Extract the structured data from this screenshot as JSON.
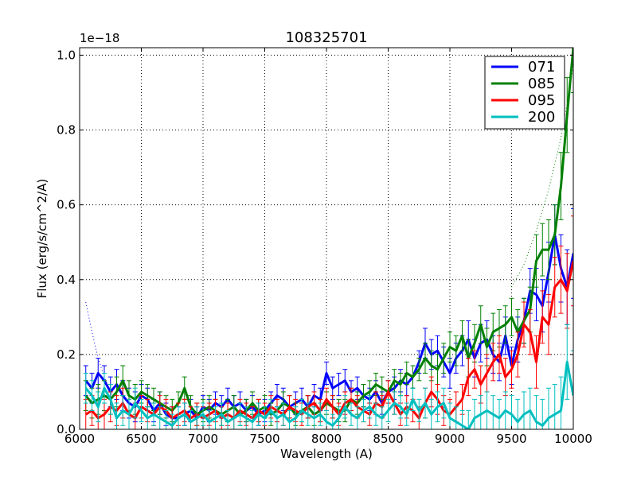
{
  "chart_data": {
    "type": "line",
    "title": "108325701",
    "xlabel": "Wavelength (A)",
    "ylabel": "Flux (erg/s/cm^2/A)",
    "offset_text": "1e−18",
    "xlim": [
      6000,
      10000
    ],
    "ylim": [
      0.0,
      1.02
    ],
    "xticks": [
      6000,
      6500,
      7000,
      7500,
      8000,
      8500,
      9000,
      9500,
      10000
    ],
    "xtick_labels": [
      "6000",
      "6500",
      "7000",
      "7500",
      "8000",
      "8500",
      "9000",
      "9500",
      "10000"
    ],
    "yticks": [
      0.0,
      0.2,
      0.4,
      0.6,
      0.8,
      1.0
    ],
    "ytick_labels": [
      "0.0",
      "0.2",
      "0.4",
      "0.6",
      "0.8",
      "1.0"
    ],
    "grid": true,
    "legend_position": "top-right",
    "series": [
      {
        "name": "071",
        "color": "#0000ff",
        "x": [
          6050,
          6100,
          6150,
          6200,
          6250,
          6300,
          6350,
          6400,
          6450,
          6500,
          6550,
          6600,
          6650,
          6700,
          6750,
          6800,
          6850,
          6900,
          6950,
          7000,
          7050,
          7100,
          7150,
          7200,
          7250,
          7300,
          7350,
          7400,
          7450,
          7500,
          7550,
          7600,
          7650,
          7700,
          7750,
          7800,
          7850,
          7900,
          7950,
          8000,
          8050,
          8100,
          8150,
          8200,
          8250,
          8300,
          8350,
          8400,
          8450,
          8500,
          8550,
          8600,
          8650,
          8700,
          8750,
          8800,
          8850,
          8900,
          8950,
          9000,
          9050,
          9100,
          9150,
          9200,
          9250,
          9300,
          9350,
          9400,
          9450,
          9500,
          9550,
          9600,
          9650,
          9700,
          9750,
          9800,
          9850,
          9900,
          9950,
          10000
        ],
        "y": [
          0.13,
          0.11,
          0.15,
          0.13,
          0.1,
          0.12,
          0.09,
          0.07,
          0.06,
          0.09,
          0.08,
          0.05,
          0.07,
          0.04,
          0.03,
          0.03,
          0.04,
          0.05,
          0.03,
          0.06,
          0.05,
          0.07,
          0.06,
          0.08,
          0.06,
          0.07,
          0.05,
          0.06,
          0.04,
          0.05,
          0.07,
          0.09,
          0.08,
          0.06,
          0.07,
          0.08,
          0.06,
          0.09,
          0.08,
          0.15,
          0.11,
          0.12,
          0.13,
          0.1,
          0.11,
          0.09,
          0.08,
          0.1,
          0.07,
          0.1,
          0.11,
          0.13,
          0.12,
          0.14,
          0.18,
          0.23,
          0.2,
          0.21,
          0.18,
          0.15,
          0.19,
          0.21,
          0.24,
          0.19,
          0.23,
          0.24,
          0.2,
          0.18,
          0.25,
          0.17,
          0.24,
          0.29,
          0.37,
          0.36,
          0.33,
          0.42,
          0.52,
          0.43,
          0.38,
          0.47
        ],
        "err": [
          0.04,
          0.04,
          0.04,
          0.04,
          0.04,
          0.04,
          0.04,
          0.04,
          0.04,
          0.03,
          0.03,
          0.03,
          0.03,
          0.03,
          0.03,
          0.03,
          0.03,
          0.03,
          0.03,
          0.03,
          0.03,
          0.03,
          0.03,
          0.03,
          0.03,
          0.03,
          0.03,
          0.03,
          0.03,
          0.03,
          0.03,
          0.03,
          0.03,
          0.03,
          0.03,
          0.03,
          0.03,
          0.03,
          0.03,
          0.03,
          0.03,
          0.03,
          0.03,
          0.03,
          0.03,
          0.03,
          0.03,
          0.03,
          0.03,
          0.03,
          0.03,
          0.03,
          0.03,
          0.03,
          0.03,
          0.04,
          0.04,
          0.04,
          0.04,
          0.04,
          0.04,
          0.04,
          0.05,
          0.05,
          0.05,
          0.05,
          0.05,
          0.05,
          0.05,
          0.05,
          0.06,
          0.06,
          0.06,
          0.07,
          0.07,
          0.08,
          0.08,
          0.09,
          0.1,
          0.12
        ],
        "model": {
          "x": [
            6050,
            6100,
            6150,
            6200,
            6250,
            6300
          ],
          "y": [
            0.34,
            0.26,
            0.19,
            0.14,
            0.1,
            0.07
          ]
        }
      },
      {
        "name": "085",
        "color": "#008000",
        "x": [
          6050,
          6100,
          6150,
          6200,
          6250,
          6300,
          6350,
          6400,
          6450,
          6500,
          6550,
          6600,
          6650,
          6700,
          6750,
          6800,
          6850,
          6900,
          6950,
          7000,
          7050,
          7100,
          7150,
          7200,
          7250,
          7300,
          7350,
          7400,
          7450,
          7500,
          7550,
          7600,
          7650,
          7700,
          7750,
          7800,
          7850,
          7900,
          7950,
          8000,
          8050,
          8100,
          8150,
          8200,
          8250,
          8300,
          8350,
          8400,
          8450,
          8500,
          8550,
          8600,
          8650,
          8700,
          8750,
          8800,
          8850,
          8900,
          8950,
          9000,
          9050,
          9100,
          9150,
          9200,
          9250,
          9300,
          9350,
          9400,
          9450,
          9500,
          9550,
          9600,
          9650,
          9700,
          9750,
          9800,
          9850,
          9900,
          9950,
          10000
        ],
        "y": [
          0.09,
          0.07,
          0.08,
          0.09,
          0.08,
          0.1,
          0.13,
          0.09,
          0.08,
          0.1,
          0.09,
          0.08,
          0.07,
          0.06,
          0.05,
          0.07,
          0.11,
          0.06,
          0.04,
          0.05,
          0.06,
          0.05,
          0.04,
          0.05,
          0.06,
          0.04,
          0.05,
          0.07,
          0.05,
          0.06,
          0.04,
          0.05,
          0.07,
          0.06,
          0.04,
          0.05,
          0.06,
          0.04,
          0.05,
          0.07,
          0.06,
          0.05,
          0.05,
          0.08,
          0.07,
          0.09,
          0.1,
          0.12,
          0.11,
          0.1,
          0.13,
          0.12,
          0.15,
          0.14,
          0.16,
          0.19,
          0.17,
          0.16,
          0.19,
          0.22,
          0.21,
          0.25,
          0.19,
          0.23,
          0.28,
          0.22,
          0.26,
          0.27,
          0.28,
          0.3,
          0.26,
          0.29,
          0.32,
          0.45,
          0.48,
          0.48,
          0.52,
          0.65,
          0.84,
          1.02
        ],
        "err": [
          0.04,
          0.04,
          0.04,
          0.04,
          0.04,
          0.04,
          0.04,
          0.04,
          0.04,
          0.03,
          0.03,
          0.03,
          0.03,
          0.03,
          0.03,
          0.03,
          0.03,
          0.03,
          0.03,
          0.03,
          0.03,
          0.03,
          0.03,
          0.03,
          0.03,
          0.03,
          0.03,
          0.03,
          0.03,
          0.03,
          0.03,
          0.03,
          0.03,
          0.03,
          0.03,
          0.03,
          0.03,
          0.03,
          0.03,
          0.03,
          0.03,
          0.03,
          0.03,
          0.03,
          0.03,
          0.03,
          0.03,
          0.03,
          0.03,
          0.03,
          0.03,
          0.03,
          0.03,
          0.03,
          0.03,
          0.04,
          0.04,
          0.04,
          0.04,
          0.04,
          0.04,
          0.04,
          0.05,
          0.05,
          0.05,
          0.05,
          0.05,
          0.05,
          0.05,
          0.05,
          0.06,
          0.06,
          0.06,
          0.07,
          0.07,
          0.08,
          0.08,
          0.09,
          0.1,
          0.12
        ],
        "model": {
          "x": [
            9500,
            9600,
            9700,
            9800,
            9900,
            9950,
            10000
          ],
          "y": [
            0.38,
            0.44,
            0.53,
            0.64,
            0.78,
            0.87,
            0.97
          ]
        }
      },
      {
        "name": "095",
        "color": "#ff0000",
        "x": [
          6050,
          6100,
          6150,
          6200,
          6250,
          6300,
          6350,
          6400,
          6450,
          6500,
          6550,
          6600,
          6650,
          6700,
          6750,
          6800,
          6850,
          6900,
          6950,
          7000,
          7050,
          7100,
          7150,
          7200,
          7250,
          7300,
          7350,
          7400,
          7450,
          7500,
          7550,
          7600,
          7650,
          7700,
          7750,
          7800,
          7850,
          7900,
          7950,
          8000,
          8050,
          8100,
          8150,
          8200,
          8250,
          8300,
          8350,
          8400,
          8450,
          8500,
          8550,
          8600,
          8650,
          8700,
          8750,
          8800,
          8850,
          8900,
          8950,
          9000,
          9050,
          9100,
          9150,
          9200,
          9250,
          9300,
          9350,
          9400,
          9450,
          9500,
          9550,
          9600,
          9650,
          9700,
          9750,
          9800,
          9850,
          9900,
          9950,
          10000
        ],
        "y": [
          0.04,
          0.05,
          0.03,
          0.04,
          0.06,
          0.05,
          0.07,
          0.04,
          0.03,
          0.06,
          0.05,
          0.04,
          0.06,
          0.05,
          0.03,
          0.04,
          0.05,
          0.03,
          0.04,
          0.03,
          0.04,
          0.05,
          0.03,
          0.04,
          0.03,
          0.05,
          0.04,
          0.03,
          0.05,
          0.04,
          0.06,
          0.05,
          0.04,
          0.06,
          0.05,
          0.04,
          0.06,
          0.07,
          0.05,
          0.08,
          0.06,
          0.04,
          0.07,
          0.08,
          0.06,
          0.05,
          0.04,
          0.07,
          0.06,
          0.1,
          0.07,
          0.04,
          0.06,
          0.05,
          0.03,
          0.07,
          0.1,
          0.08,
          0.05,
          0.04,
          0.06,
          0.08,
          0.14,
          0.16,
          0.12,
          0.15,
          0.18,
          0.2,
          0.14,
          0.16,
          0.2,
          0.28,
          0.26,
          0.18,
          0.3,
          0.28,
          0.38,
          0.4,
          0.37,
          0.45
        ],
        "err": [
          0.04,
          0.04,
          0.04,
          0.04,
          0.04,
          0.04,
          0.04,
          0.04,
          0.04,
          0.03,
          0.03,
          0.03,
          0.03,
          0.03,
          0.03,
          0.03,
          0.03,
          0.03,
          0.03,
          0.03,
          0.03,
          0.03,
          0.03,
          0.03,
          0.03,
          0.03,
          0.03,
          0.03,
          0.03,
          0.03,
          0.03,
          0.03,
          0.03,
          0.03,
          0.03,
          0.03,
          0.03,
          0.03,
          0.03,
          0.03,
          0.03,
          0.03,
          0.03,
          0.03,
          0.03,
          0.03,
          0.03,
          0.03,
          0.03,
          0.03,
          0.03,
          0.03,
          0.03,
          0.03,
          0.03,
          0.04,
          0.04,
          0.04,
          0.04,
          0.04,
          0.04,
          0.04,
          0.05,
          0.05,
          0.05,
          0.05,
          0.05,
          0.05,
          0.05,
          0.05,
          0.06,
          0.06,
          0.06,
          0.07,
          0.07,
          0.08,
          0.08,
          0.09,
          0.1,
          0.12
        ]
      },
      {
        "name": "200",
        "color": "#00bfbf",
        "x": [
          6050,
          6100,
          6150,
          6200,
          6250,
          6300,
          6350,
          6400,
          6450,
          6500,
          6550,
          6600,
          6650,
          6700,
          6750,
          6800,
          6850,
          6900,
          6950,
          7000,
          7050,
          7100,
          7150,
          7200,
          7250,
          7300,
          7350,
          7400,
          7450,
          7500,
          7550,
          7600,
          7650,
          7700,
          7750,
          7800,
          7850,
          7900,
          7950,
          8000,
          8050,
          8100,
          8150,
          8200,
          8250,
          8300,
          8350,
          8400,
          8450,
          8500,
          8550,
          8600,
          8650,
          8700,
          8750,
          8800,
          8850,
          8900,
          8950,
          9000,
          9050,
          9100,
          9150,
          9200,
          9250,
          9300,
          9350,
          9400,
          9450,
          9500,
          9550,
          9600,
          9650,
          9700,
          9750,
          9800,
          9850,
          9900,
          9950,
          10000
        ],
        "y": [
          0.11,
          0.09,
          0.06,
          0.11,
          0.08,
          0.03,
          0.05,
          0.04,
          0.07,
          0.05,
          0.03,
          0.04,
          0.03,
          0.02,
          0.01,
          0.03,
          0.04,
          0.02,
          0.03,
          0.04,
          0.02,
          0.03,
          0.04,
          0.02,
          0.03,
          0.04,
          0.03,
          0.02,
          0.04,
          0.03,
          0.05,
          0.03,
          0.04,
          0.02,
          0.03,
          0.05,
          0.04,
          0.03,
          0.04,
          0.02,
          0.01,
          0.03,
          0.06,
          0.04,
          0.03,
          0.05,
          0.06,
          0.04,
          0.03,
          0.05,
          0.07,
          0.06,
          0.04,
          0.08,
          0.05,
          0.07,
          0.04,
          0.06,
          0.07,
          0.03,
          0.02,
          0.01,
          0.0,
          0.03,
          0.04,
          0.05,
          0.04,
          0.03,
          0.05,
          0.04,
          0.02,
          0.04,
          0.05,
          0.02,
          0.01,
          0.03,
          0.04,
          0.05,
          0.18,
          0.09
        ],
        "err": [
          0.04,
          0.04,
          0.04,
          0.04,
          0.04,
          0.04,
          0.04,
          0.04,
          0.04,
          0.03,
          0.03,
          0.03,
          0.03,
          0.03,
          0.03,
          0.03,
          0.03,
          0.03,
          0.03,
          0.03,
          0.03,
          0.03,
          0.03,
          0.03,
          0.03,
          0.03,
          0.03,
          0.03,
          0.03,
          0.03,
          0.03,
          0.03,
          0.03,
          0.03,
          0.03,
          0.03,
          0.03,
          0.03,
          0.03,
          0.03,
          0.03,
          0.03,
          0.03,
          0.03,
          0.03,
          0.03,
          0.03,
          0.03,
          0.03,
          0.03,
          0.03,
          0.03,
          0.03,
          0.03,
          0.03,
          0.04,
          0.04,
          0.04,
          0.04,
          0.04,
          0.04,
          0.04,
          0.05,
          0.05,
          0.05,
          0.05,
          0.05,
          0.05,
          0.05,
          0.05,
          0.06,
          0.06,
          0.06,
          0.07,
          0.07,
          0.08,
          0.08,
          0.09,
          0.1,
          0.12
        ]
      }
    ]
  }
}
